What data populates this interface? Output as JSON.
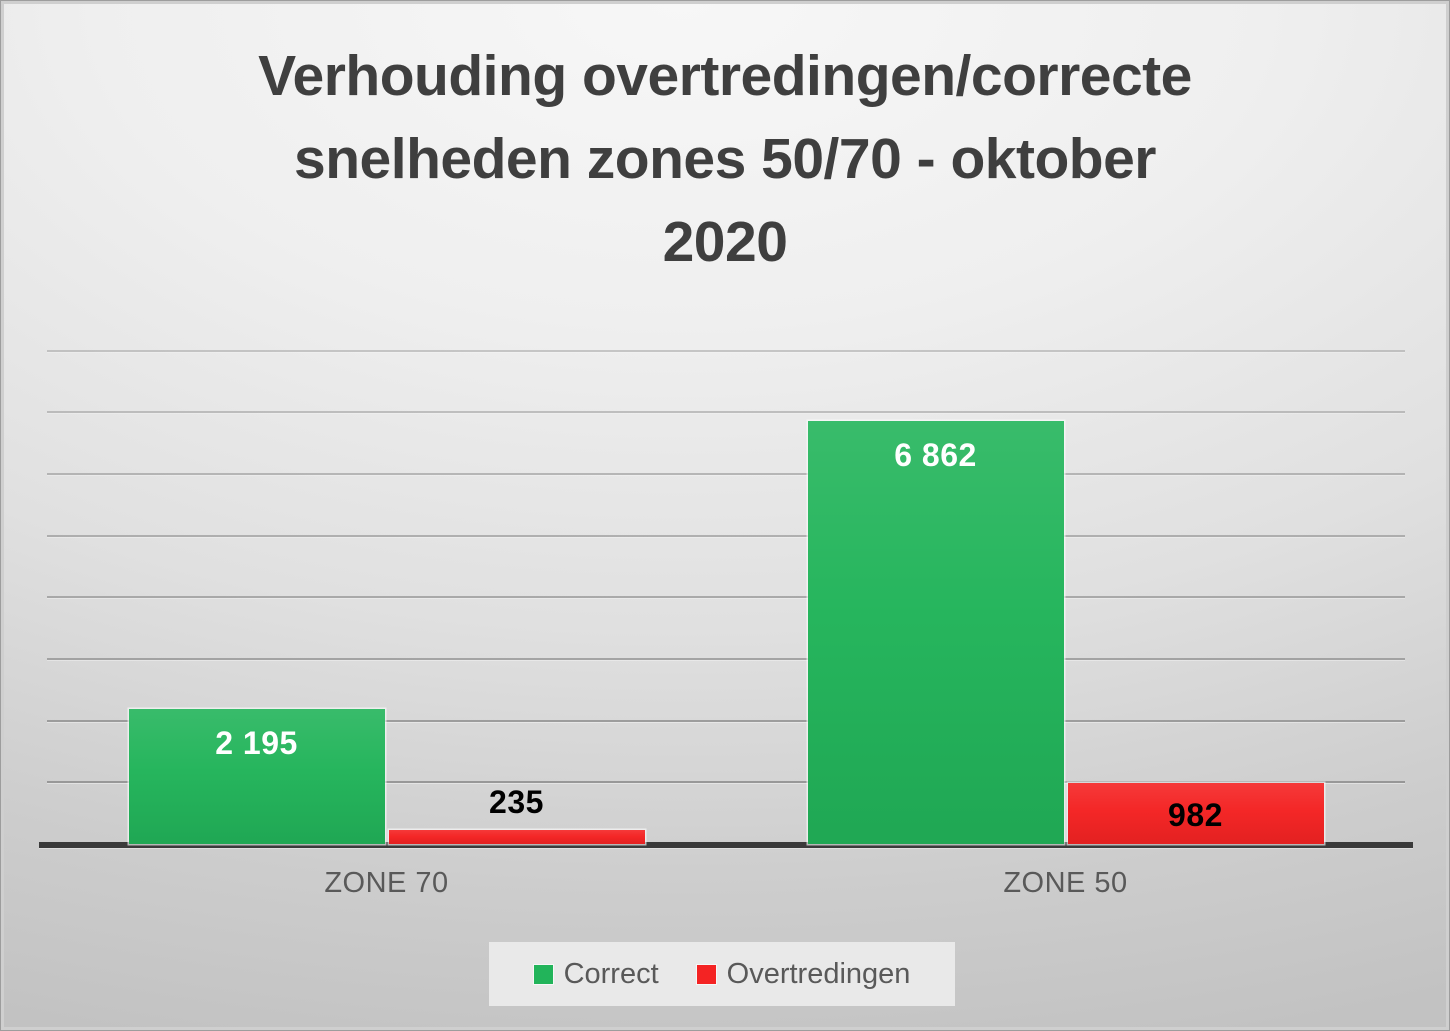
{
  "chart_data": {
    "type": "bar",
    "title": "Verhouding overtredingen/correcte snelheden zones 50/70 - oktober 2020",
    "title_lines": [
      "Verhouding overtredingen/correcte",
      "snelheden zones 50/70 - oktober",
      "2020"
    ],
    "categories": [
      "ZONE 70",
      "ZONE 50"
    ],
    "series": [
      {
        "name": "Correct",
        "color": "#22b45a",
        "values": [
          2195,
          6862
        ],
        "value_labels": [
          "2 195",
          "6 862"
        ],
        "label_color": "#ffffff"
      },
      {
        "name": "Overtredingen",
        "color": "#f42323",
        "values": [
          235,
          982
        ],
        "value_labels": [
          "235",
          "982"
        ],
        "label_color": "#000000"
      }
    ],
    "ylim": [
      0,
      8000
    ],
    "ytick_interval": 1000,
    "y_axis_tick_labels_visible": false,
    "grid": "horizontal",
    "legend_position": "bottom"
  },
  "colors": {
    "title_text": "#3f3f3f",
    "category_text": "#595959",
    "legend_text": "#595959",
    "legend_background": "#e9e9e9",
    "gridline": "#8f8f8f",
    "axis_line": "#3a3a3a",
    "correct_green": "#22b45a",
    "overtredingen_red": "#f42323",
    "background_light": "#f7f7f7",
    "background_dark": "#c2c2c2"
  }
}
